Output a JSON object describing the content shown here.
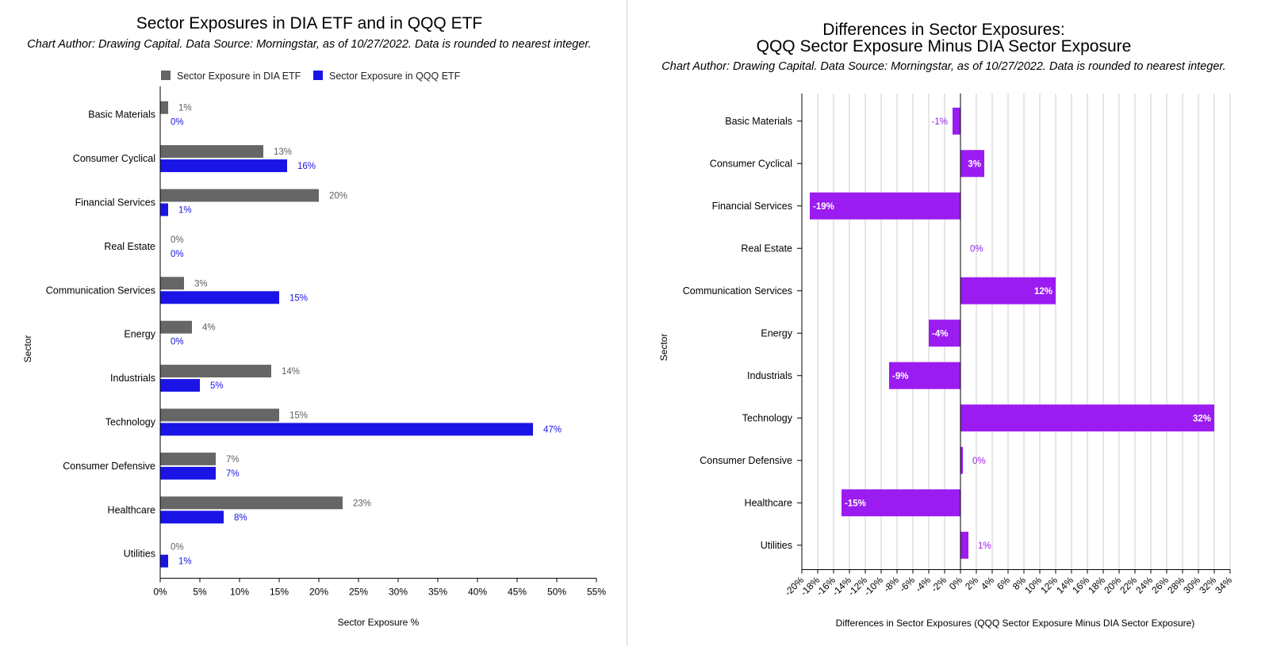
{
  "colors": {
    "dia": "#666666",
    "qqq": "#1a14e6",
    "diff": "#9b1cf0",
    "grid": "#cccccc"
  },
  "chart_data": [
    {
      "type": "bar",
      "orientation": "horizontal",
      "title": "Sector Exposures in DIA ETF and in QQQ ETF",
      "subtitle": "Chart Author: Drawing Capital. Data Source: Morningstar, as of 10/27/2022. Data is rounded to nearest integer.",
      "xlabel": "Sector Exposure %",
      "ylabel": "Sector",
      "categories": [
        "Basic Materials",
        "Consumer Cyclical",
        "Financial Services",
        "Real Estate",
        "Communication Services",
        "Energy",
        "Industrials",
        "Technology",
        "Consumer Defensive",
        "Healthcare",
        "Utilities"
      ],
      "series": [
        {
          "name": "Sector Exposure in DIA ETF",
          "values": [
            1,
            13,
            20,
            0,
            3,
            4,
            14,
            15,
            7,
            23,
            0
          ],
          "labels": [
            "1%",
            "13%",
            "20%",
            "0%",
            "3%",
            "4%",
            "14%",
            "15%",
            "7%",
            "23%",
            "0%"
          ]
        },
        {
          "name": "Sector Exposure in QQQ ETF",
          "values": [
            0,
            16,
            1,
            0,
            15,
            0,
            5,
            47,
            7,
            8,
            1
          ],
          "labels": [
            "0%",
            "16%",
            "1%",
            "0%",
            "15%",
            "0%",
            "5%",
            "47%",
            "7%",
            "8%",
            "1%"
          ]
        }
      ],
      "xlim": [
        0,
        55
      ],
      "xticks": [
        0,
        5,
        10,
        15,
        20,
        25,
        30,
        35,
        40,
        45,
        50,
        55
      ],
      "xtick_labels": [
        "0%",
        "5%",
        "10%",
        "15%",
        "20%",
        "25%",
        "30%",
        "35%",
        "40%",
        "45%",
        "50%",
        "55%"
      ],
      "grid": false,
      "legend": "top"
    },
    {
      "type": "bar",
      "orientation": "horizontal",
      "title_lines": [
        "Differences in Sector Exposures:",
        "QQQ Sector Exposure Minus DIA Sector Exposure"
      ],
      "subtitle": "Chart Author: Drawing Capital. Data Source: Morningstar, as of 10/27/2022. Data is rounded to nearest integer.",
      "xlabel": "Differences in Sector Exposures (QQQ Sector Exposure Minus DIA Sector Exposure)",
      "ylabel": "Sector",
      "categories": [
        "Basic Materials",
        "Consumer Cyclical",
        "Financial Services",
        "Real Estate",
        "Communication Services",
        "Energy",
        "Industrials",
        "Technology",
        "Consumer Defensive",
        "Healthcare",
        "Utilities"
      ],
      "values": [
        -1,
        3,
        -19,
        0,
        12,
        -4,
        -9,
        32,
        0,
        -15,
        1
      ],
      "labels": [
        "-1%",
        "3%",
        "-19%",
        "0%",
        "12%",
        "-4%",
        "-9%",
        "32%",
        "0%",
        "-15%",
        "1%"
      ],
      "xlim": [
        -20,
        34
      ],
      "xticks": [
        -20,
        -18,
        -16,
        -14,
        -12,
        -10,
        -8,
        -6,
        -4,
        -2,
        0,
        2,
        4,
        6,
        8,
        10,
        12,
        14,
        16,
        18,
        20,
        22,
        24,
        26,
        28,
        30,
        32,
        34
      ],
      "xtick_labels": [
        "-20%",
        "-18%",
        "-16%",
        "-14%",
        "-12%",
        "-10%",
        "-8%",
        "-6%",
        "-4%",
        "-2%",
        "0%",
        "2%",
        "4%",
        "6%",
        "8%",
        "10%",
        "12%",
        "14%",
        "16%",
        "18%",
        "20%",
        "22%",
        "24%",
        "26%",
        "28%",
        "30%",
        "32%",
        "34%"
      ],
      "grid": true,
      "legend": "none"
    }
  ]
}
